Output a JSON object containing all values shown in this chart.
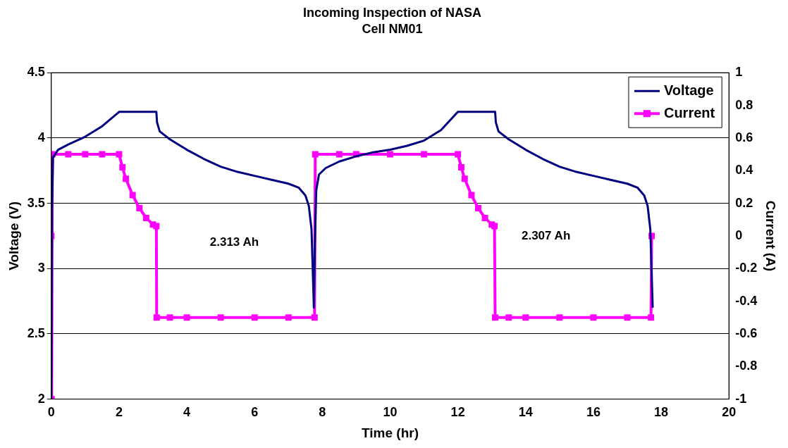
{
  "chart_data": {
    "type": "line",
    "title": "Incoming Inspection of NASA",
    "subtitle": "Cell NM01",
    "xlabel": "Time (hr)",
    "ylabel": "Voltage (V)",
    "y2label": "Current (A)",
    "xlim": [
      0,
      20
    ],
    "xticks": [
      0,
      2,
      4,
      6,
      8,
      10,
      12,
      14,
      16,
      18,
      20
    ],
    "ylim": [
      2,
      4.5
    ],
    "yticks": [
      2,
      2.5,
      3,
      3.5,
      4,
      4.5
    ],
    "y2lim": [
      -1,
      1
    ],
    "y2ticks": [
      -1,
      -0.8,
      -0.6,
      -0.4,
      -0.2,
      0,
      0.2,
      0.4,
      0.6,
      0.8,
      1
    ],
    "grid": "y",
    "legend": "top right",
    "annotations": [
      "2.313 Ah",
      "2.307 Ah"
    ],
    "series": [
      {
        "name": "Voltage",
        "color": "#000080",
        "marker": "none",
        "x": [
          0,
          0.02,
          0.05,
          0.2,
          0.5,
          1,
          1.5,
          2,
          3.1,
          3.12,
          3.2,
          3.5,
          4,
          4.5,
          5,
          5.5,
          6,
          6.5,
          7,
          7.3,
          7.5,
          7.6,
          7.68,
          7.75,
          7.78,
          7.82,
          7.9,
          8.1,
          8.5,
          9,
          9.5,
          10,
          10.5,
          11,
          11.5,
          12,
          13.1,
          13.12,
          13.2,
          13.5,
          14,
          14.5,
          15,
          15.5,
          16,
          16.5,
          17,
          17.3,
          17.5,
          17.6,
          17.68,
          17.75
        ],
        "values": [
          2,
          3.45,
          3.85,
          3.91,
          3.95,
          4.01,
          4.09,
          4.2,
          4.2,
          4.12,
          4.05,
          3.99,
          3.91,
          3.84,
          3.78,
          3.74,
          3.71,
          3.68,
          3.65,
          3.62,
          3.56,
          3.48,
          3.3,
          2.7,
          3.2,
          3.6,
          3.72,
          3.77,
          3.82,
          3.86,
          3.89,
          3.91,
          3.94,
          3.98,
          4.06,
          4.2,
          4.2,
          4.12,
          4.05,
          3.99,
          3.91,
          3.84,
          3.78,
          3.74,
          3.71,
          3.68,
          3.65,
          3.62,
          3.56,
          3.48,
          3.3,
          2.7
        ]
      },
      {
        "name": "Current",
        "color": "#ff00ff",
        "marker": "square",
        "axis": "y2",
        "x": [
          0,
          0.01,
          0.03,
          0.5,
          1,
          1.5,
          2,
          2.1,
          2.2,
          2.4,
          2.6,
          2.8,
          3,
          3.1,
          3.11,
          3.5,
          4,
          5,
          6,
          7,
          7.77,
          7.79,
          8.5,
          9,
          10,
          11,
          12,
          12.1,
          12.2,
          12.4,
          12.6,
          12.8,
          13,
          13.08,
          13.1,
          13.5,
          14,
          15,
          16,
          17,
          17.7,
          17.72
        ],
        "values": [
          0,
          -1,
          0.5,
          0.5,
          0.5,
          0.5,
          0.5,
          0.42,
          0.35,
          0.25,
          0.17,
          0.11,
          0.07,
          0.06,
          -0.5,
          -0.5,
          -0.5,
          -0.5,
          -0.5,
          -0.5,
          -0.5,
          0.5,
          0.5,
          0.5,
          0.5,
          0.5,
          0.5,
          0.42,
          0.35,
          0.25,
          0.17,
          0.11,
          0.07,
          0.06,
          -0.5,
          -0.5,
          -0.5,
          -0.5,
          -0.5,
          -0.5,
          -0.5,
          0
        ]
      }
    ]
  }
}
